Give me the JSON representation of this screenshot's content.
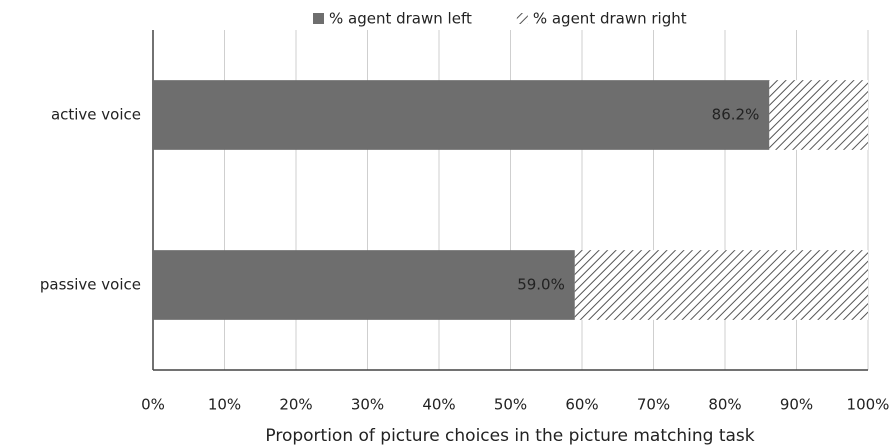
{
  "chart_data": {
    "type": "stacked-bar-horizontal",
    "categories": [
      "active voice",
      "passive voice"
    ],
    "series": [
      {
        "name": "% agent drawn left",
        "color": "#6e6e6e",
        "pattern": "solid",
        "values": [
          86.2,
          59.0
        ],
        "value_labels": [
          "86.2%",
          "59.0%"
        ]
      },
      {
        "name": "% agent drawn right",
        "color": "#555555",
        "pattern": "hatch",
        "values": [
          13.8,
          41.0
        ]
      }
    ],
    "xlabel": "Proportion of picture choices in the picture matching task",
    "xlim": [
      0,
      100
    ],
    "xticks": [
      {
        "value": 0,
        "label": "0%"
      },
      {
        "value": 10,
        "label": "10%"
      },
      {
        "value": 20,
        "label": "20%"
      },
      {
        "value": 30,
        "label": "30%"
      },
      {
        "value": 40,
        "label": "40%"
      },
      {
        "value": 50,
        "label": "50%"
      },
      {
        "value": 60,
        "label": "60%"
      },
      {
        "value": 70,
        "label": "70%"
      },
      {
        "value": 80,
        "label": "80%"
      },
      {
        "value": 90,
        "label": "90%"
      },
      {
        "value": 100,
        "label": "100%"
      }
    ],
    "grid": true,
    "legend": "top"
  }
}
